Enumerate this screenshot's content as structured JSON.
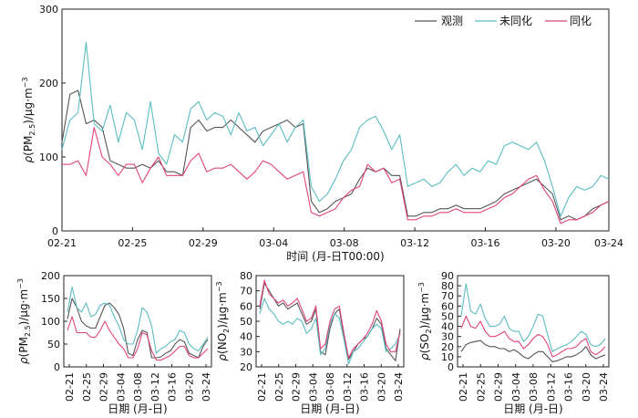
{
  "legend": [
    {
      "name": "观测",
      "color": "#555555"
    },
    {
      "name": "未同化",
      "color": "#5bbcc0"
    },
    {
      "name": "同化",
      "color": "#e0447c"
    }
  ],
  "chart_data": [
    {
      "type": "line",
      "xlabel": "时间 (月-日T00:00)",
      "ylabel": "ρ(PM2.5)/μg·m⁻³",
      "ylabel_parts": [
        "ρ(PM",
        "2.5",
        ")/μg·m",
        "−3"
      ],
      "ylim": [
        0,
        300
      ],
      "yticks": [
        0,
        100,
        200,
        300
      ],
      "xlim": [
        0,
        31
      ],
      "xticks": [
        0,
        4,
        8,
        12,
        16,
        20,
        24,
        28,
        31
      ],
      "xticklabels": [
        "02-21",
        "02-25",
        "02-29",
        "03-04",
        "03-08",
        "03-12",
        "03-16",
        "03-20",
        "03-24"
      ],
      "legend_position": "top-right",
      "grid": false,
      "resolution_per_day": 2,
      "series": [
        {
          "name": "观测",
          "color": "#555555",
          "values": [
            120,
            185,
            190,
            145,
            150,
            140,
            95,
            90,
            85,
            85,
            90,
            85,
            95,
            80,
            80,
            75,
            140,
            150,
            135,
            140,
            140,
            150,
            140,
            130,
            120,
            135,
            140,
            145,
            150,
            140,
            145,
            40,
            25,
            30,
            40,
            45,
            50,
            70,
            85,
            80,
            85,
            75,
            75,
            20,
            20,
            25,
            25,
            30,
            30,
            35,
            30,
            30,
            30,
            35,
            40,
            50,
            55,
            60,
            65,
            70,
            60,
            50,
            15,
            20,
            15,
            20,
            30,
            35,
            40
          ]
        },
        {
          "name": "未同化",
          "color": "#5bbcc0",
          "values": [
            110,
            150,
            160,
            255,
            145,
            135,
            170,
            120,
            160,
            150,
            110,
            175,
            105,
            90,
            130,
            120,
            165,
            175,
            150,
            160,
            155,
            130,
            160,
            135,
            140,
            115,
            130,
            145,
            120,
            140,
            150,
            60,
            40,
            50,
            70,
            95,
            110,
            140,
            150,
            155,
            135,
            110,
            130,
            60,
            65,
            70,
            60,
            65,
            80,
            90,
            75,
            85,
            80,
            95,
            90,
            115,
            120,
            115,
            110,
            120,
            95,
            60,
            20,
            45,
            60,
            55,
            60,
            75,
            70
          ]
        },
        {
          "name": "同化",
          "color": "#e0447c",
          "values": [
            90,
            90,
            95,
            75,
            140,
            100,
            90,
            75,
            90,
            90,
            65,
            85,
            100,
            75,
            75,
            75,
            95,
            105,
            80,
            85,
            85,
            90,
            80,
            70,
            80,
            95,
            90,
            80,
            70,
            75,
            80,
            25,
            20,
            25,
            30,
            45,
            55,
            60,
            90,
            80,
            85,
            65,
            70,
            15,
            15,
            20,
            20,
            25,
            25,
            30,
            25,
            25,
            25,
            30,
            35,
            45,
            50,
            60,
            70,
            75,
            55,
            40,
            10,
            15,
            15,
            20,
            25,
            35,
            40
          ]
        }
      ]
    },
    {
      "type": "line",
      "xlabel": "日期 (月-日)",
      "ylabel": "ρ(PM2.5)/μg·m⁻³",
      "ylabel_parts": [
        "ρ(PM",
        "2.5",
        ")/μg·m",
        "−3"
      ],
      "ylim": [
        0,
        200
      ],
      "yticks": [
        0,
        50,
        100,
        150,
        200
      ],
      "xticklabels": [
        "02-21",
        "02-25",
        "02-29",
        "03-04",
        "03-08",
        "03-12",
        "03-16",
        "03-20",
        "03-24"
      ],
      "grid": false,
      "series": [
        {
          "name": "观测",
          "color": "#555555",
          "values": [
            105,
            150,
            130,
            100,
            90,
            85,
            85,
            110,
            135,
            140,
            130,
            115,
            85,
            30,
            25,
            60,
            80,
            75,
            20,
            20,
            22,
            30,
            35,
            50,
            60,
            55,
            30,
            25,
            20,
            45,
            60
          ]
        },
        {
          "name": "未同化",
          "color": "#5bbcc0",
          "values": [
            120,
            175,
            130,
            120,
            140,
            110,
            115,
            135,
            140,
            135,
            110,
            90,
            60,
            50,
            50,
            80,
            130,
            120,
            90,
            30,
            40,
            45,
            55,
            60,
            80,
            75,
            50,
            40,
            35,
            50,
            65
          ]
        },
        {
          "name": "同化",
          "color": "#e0447c",
          "values": [
            80,
            110,
            75,
            75,
            75,
            65,
            65,
            80,
            100,
            80,
            65,
            50,
            40,
            20,
            20,
            40,
            75,
            70,
            35,
            15,
            15,
            20,
            25,
            35,
            45,
            45,
            25,
            20,
            20,
            30,
            40
          ]
        }
      ]
    },
    {
      "type": "line",
      "xlabel": "日期 (月-日)",
      "ylabel": "ρ(NO2)/μg·m⁻³",
      "ylabel_parts": [
        "ρ(NO",
        "2",
        ")/μg·m",
        "−3"
      ],
      "ylim": [
        20,
        80
      ],
      "yticks": [
        20,
        30,
        40,
        50,
        60,
        70,
        80
      ],
      "xticklabels": [
        "02-21",
        "02-25",
        "02-29",
        "03-04",
        "03-08",
        "03-12",
        "03-16",
        "03-20",
        "03-24"
      ],
      "grid": false,
      "series": [
        {
          "name": "观测",
          "color": "#555555",
          "values": [
            58,
            75,
            70,
            65,
            60,
            62,
            58,
            60,
            62,
            55,
            48,
            50,
            58,
            30,
            28,
            45,
            55,
            58,
            40,
            25,
            30,
            35,
            38,
            40,
            45,
            52,
            48,
            32,
            28,
            24,
            45
          ]
        },
        {
          "name": "未同化",
          "color": "#5bbcc0",
          "values": [
            55,
            65,
            58,
            55,
            50,
            48,
            50,
            48,
            52,
            50,
            42,
            45,
            52,
            28,
            32,
            48,
            55,
            52,
            38,
            22,
            30,
            32,
            36,
            40,
            45,
            48,
            45,
            30,
            32,
            35,
            42
          ]
        },
        {
          "name": "同化",
          "color": "#e0447c",
          "values": [
            60,
            77,
            68,
            65,
            62,
            64,
            60,
            62,
            65,
            58,
            50,
            52,
            60,
            32,
            35,
            50,
            58,
            60,
            42,
            26,
            32,
            35,
            38,
            42,
            48,
            57,
            50,
            35,
            30,
            30,
            43
          ]
        }
      ]
    },
    {
      "type": "line",
      "xlabel": "日期 (月-日)",
      "ylabel": "ρ(SO2)/μg·m⁻³",
      "ylabel_parts": [
        "ρ(SO",
        "2",
        ")/μg·m",
        "−3"
      ],
      "ylim": [
        0,
        90
      ],
      "yticks": [
        0,
        10,
        20,
        30,
        40,
        50,
        60,
        70,
        80,
        90
      ],
      "xticklabels": [
        "02-21",
        "02-25",
        "02-29",
        "03-04",
        "03-08",
        "03-12",
        "03-16",
        "03-20",
        "03-24"
      ],
      "grid": false,
      "series": [
        {
          "name": "观测",
          "color": "#555555",
          "values": [
            15,
            22,
            24,
            25,
            26,
            22,
            20,
            20,
            18,
            18,
            15,
            17,
            14,
            10,
            8,
            12,
            15,
            15,
            10,
            5,
            6,
            8,
            10,
            10,
            12,
            15,
            20,
            12,
            8,
            10,
            12
          ]
        },
        {
          "name": "未同化",
          "color": "#5bbcc0",
          "values": [
            50,
            82,
            55,
            52,
            62,
            48,
            40,
            40,
            42,
            50,
            38,
            35,
            35,
            25,
            30,
            40,
            52,
            50,
            32,
            15,
            18,
            20,
            22,
            25,
            30,
            35,
            32,
            22,
            20,
            22,
            28
          ]
        },
        {
          "name": "同化",
          "color": "#e0447c",
          "values": [
            38,
            50,
            40,
            38,
            45,
            35,
            30,
            30,
            32,
            35,
            28,
            25,
            25,
            18,
            22,
            28,
            32,
            30,
            22,
            10,
            12,
            15,
            18,
            18,
            20,
            25,
            28,
            15,
            12,
            15,
            20
          ]
        }
      ]
    }
  ]
}
